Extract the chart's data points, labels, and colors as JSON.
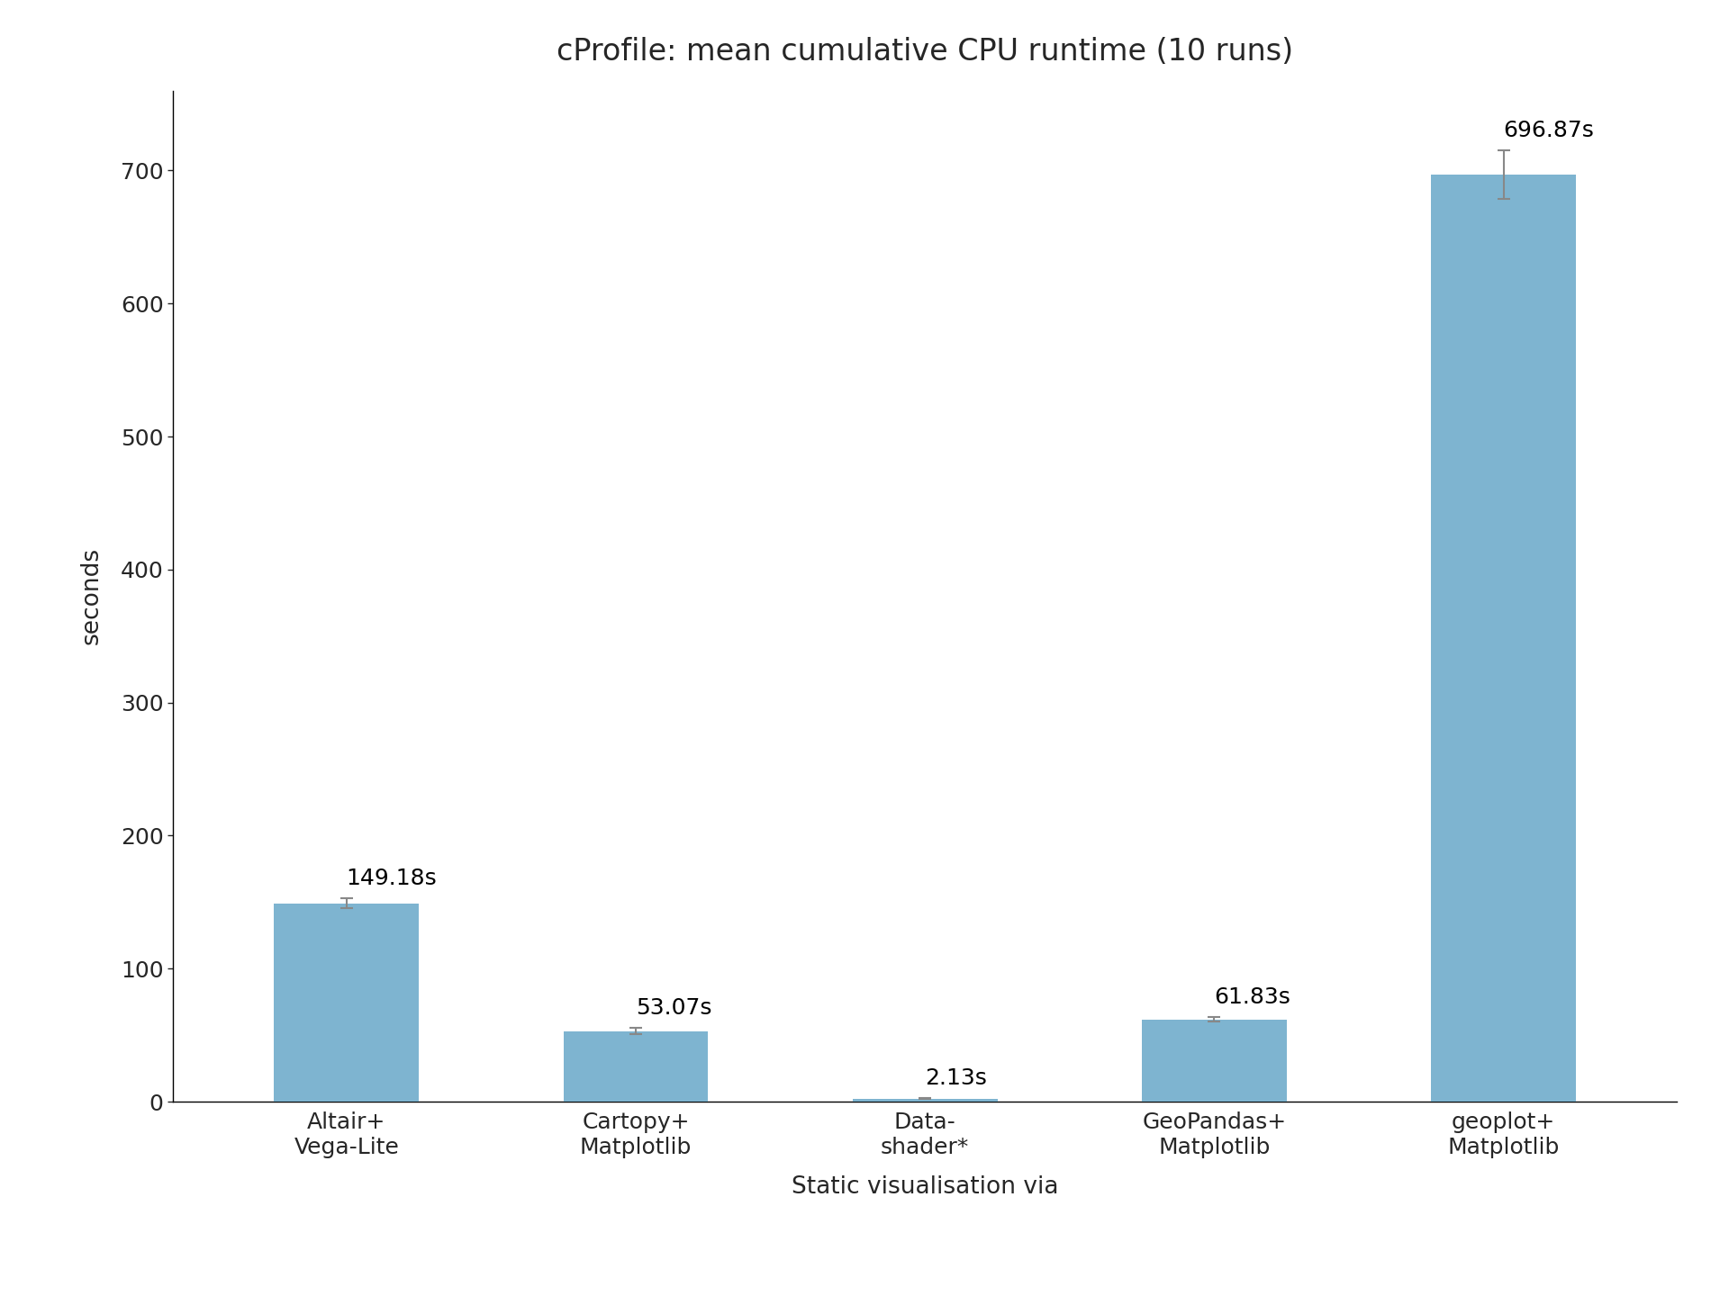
{
  "title": "cProfile: mean cumulative CPU runtime (10 runs)",
  "xlabel": "Static visualisation via",
  "ylabel": "seconds",
  "categories": [
    "Altair+\nVega-Lite",
    "Cartopy+\nMatplotlib",
    "Data-\nshader*",
    "GeoPandas+\nMatplotlib",
    "geoplot+\nMatplotlib"
  ],
  "values": [
    149.18,
    53.07,
    2.13,
    61.83,
    696.87
  ],
  "errors": [
    3.5,
    2.5,
    0.3,
    1.8,
    18.0
  ],
  "labels": [
    "149.18s",
    "53.07s",
    "2.13s",
    "61.83s",
    "696.87s"
  ],
  "bar_color": "#7EB4D0",
  "error_color": "#888888",
  "ylim": [
    0,
    760
  ],
  "yticks": [
    0,
    100,
    200,
    300,
    400,
    500,
    600,
    700
  ],
  "title_fontsize": 24,
  "label_fontsize": 19,
  "tick_fontsize": 18,
  "value_label_fontsize": 18,
  "bar_width": 0.5,
  "background_color": "#ffffff"
}
